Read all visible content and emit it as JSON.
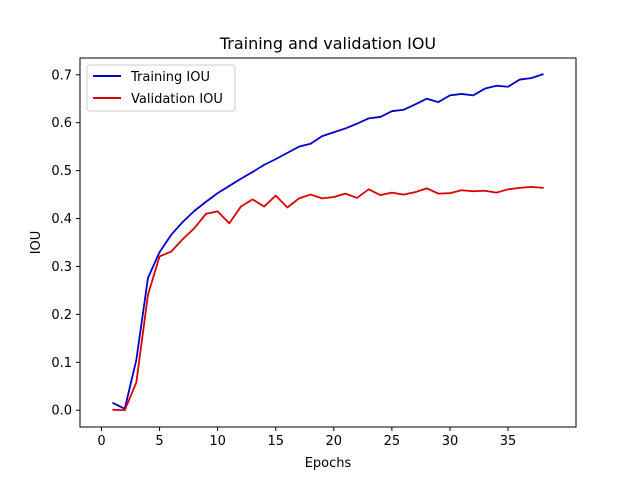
{
  "chart_data": {
    "type": "line",
    "title": "Training and validation IOU",
    "xlabel": "Epochs",
    "ylabel": "IOU",
    "xlim": [
      -1.85,
      40.85
    ],
    "ylim": [
      -0.035,
      0.735
    ],
    "xticks": [
      0,
      5,
      10,
      15,
      20,
      25,
      30,
      35
    ],
    "yticks": [
      0.0,
      0.1,
      0.2,
      0.3,
      0.4,
      0.5,
      0.6,
      0.7
    ],
    "xtick_labels": [
      "0",
      "5",
      "10",
      "15",
      "20",
      "25",
      "30",
      "35"
    ],
    "ytick_labels": [
      "0.0",
      "0.1",
      "0.2",
      "0.3",
      "0.4",
      "0.5",
      "0.6",
      "0.7"
    ],
    "grid": false,
    "legend_position": "upper-left",
    "x": [
      1,
      2,
      3,
      4,
      5,
      6,
      7,
      8,
      9,
      10,
      11,
      12,
      13,
      14,
      15,
      16,
      17,
      18,
      19,
      20,
      21,
      22,
      23,
      24,
      25,
      26,
      27,
      28,
      29,
      30,
      31,
      32,
      33,
      34,
      35,
      36,
      37,
      38
    ],
    "series": [
      {
        "name": "Training IOU",
        "color": "#0000cc",
        "values": [
          0.015,
          0.003,
          0.105,
          0.276,
          0.33,
          0.366,
          0.393,
          0.416,
          0.435,
          0.453,
          0.468,
          0.483,
          0.497,
          0.512,
          0.524,
          0.537,
          0.55,
          0.556,
          0.572,
          0.58,
          0.588,
          0.598,
          0.609,
          0.612,
          0.624,
          0.627,
          0.638,
          0.65,
          0.643,
          0.657,
          0.66,
          0.657,
          0.671,
          0.677,
          0.675,
          0.69,
          0.693,
          0.701
        ]
      },
      {
        "name": "Validation IOU",
        "color": "#dd0000",
        "values": [
          0.001,
          0.0,
          0.058,
          0.241,
          0.321,
          0.331,
          0.357,
          0.38,
          0.41,
          0.415,
          0.39,
          0.425,
          0.44,
          0.425,
          0.448,
          0.423,
          0.442,
          0.45,
          0.442,
          0.445,
          0.452,
          0.443,
          0.461,
          0.449,
          0.454,
          0.45,
          0.455,
          0.463,
          0.452,
          0.453,
          0.459,
          0.457,
          0.458,
          0.454,
          0.461,
          0.464,
          0.466,
          0.464
        ]
      }
    ]
  }
}
